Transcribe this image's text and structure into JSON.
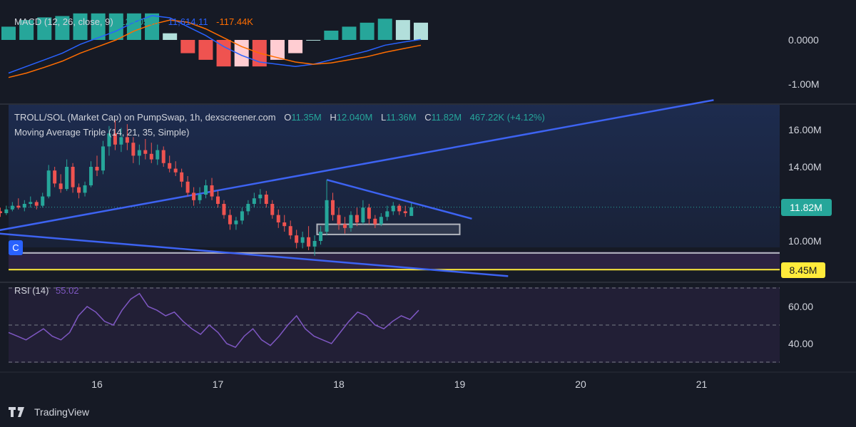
{
  "colors": {
    "up": "#26a69a",
    "down": "#ef5350",
    "macd": "#2962ff",
    "signal": "#ff6d00",
    "rsi": "#7e57c2",
    "trend": "#3d63f2",
    "accent": "#ffeb3b",
    "bg": "#161a25",
    "band": "#2c2342"
  },
  "macd_pane": {
    "title": "MACD (12, 26, close, 9)",
    "hist_value": "129.050K",
    "macd_value": "11,614.11",
    "signal_value": "-117.44K",
    "axis_ticks": [
      {
        "label": "0.0000",
        "value": 0
      },
      {
        "label": "-1.00M",
        "value": -1000000
      }
    ]
  },
  "price_pane": {
    "title": "TROLL/SOL (Market Cap) on PumpSwap, 1h, dexscreener.com",
    "o_label": "O",
    "o_value": "11.35M",
    "h_label": "H",
    "h_value": "12.040M",
    "l_label": "L",
    "l_value": "11.36M",
    "c_label": "C",
    "c_value": "11.82M",
    "change": "467.22K (+4.12%)",
    "ma_title": "Moving Average Triple (14, 21, 35, Simple)",
    "axis_ticks": [
      {
        "label": "16.00M",
        "value": 16
      },
      {
        "label": "14.00M",
        "value": 14
      },
      {
        "label": "10.00M",
        "value": 10
      }
    ],
    "current_price_label": "11.82M",
    "support_label": "8.45M",
    "marker_label": "C"
  },
  "rsi_pane": {
    "title": "RSI (14)",
    "value": "55.02",
    "axis_ticks": [
      {
        "label": "60.00",
        "value": 60
      },
      {
        "label": "40.00",
        "value": 40
      }
    ]
  },
  "time_axis": {
    "ticks": [
      {
        "label": "16",
        "day": 16
      },
      {
        "label": "17",
        "day": 17
      },
      {
        "label": "18",
        "day": 18
      },
      {
        "label": "19",
        "day": 19
      },
      {
        "label": "20",
        "day": 20
      },
      {
        "label": "21",
        "day": 21
      }
    ]
  },
  "branding": {
    "name": "TradingView"
  },
  "chart_data": {
    "type": "candlestick",
    "unit": "market cap (M)",
    "x_unit": "day of month (hourly candles)",
    "candles": [
      [
        15.05,
        12.6,
        12.9,
        12.2,
        12.3
      ],
      [
        15.1,
        12.3,
        12.5,
        11.9,
        12.0
      ],
      [
        15.15,
        12.0,
        12.1,
        11.4,
        11.6
      ],
      [
        15.2,
        11.6,
        11.8,
        11.3,
        11.5
      ],
      [
        15.25,
        11.5,
        11.9,
        11.4,
        11.7
      ],
      [
        15.3,
        11.7,
        12.1,
        11.6,
        11.9
      ],
      [
        15.35,
        11.9,
        12.3,
        11.7,
        11.8
      ],
      [
        15.4,
        11.8,
        12.2,
        11.6,
        12.0
      ],
      [
        15.45,
        12.0,
        12.4,
        11.8,
        12.1
      ],
      [
        15.5,
        12.1,
        12.2,
        11.7,
        11.9
      ],
      [
        15.55,
        11.9,
        12.6,
        11.8,
        12.4
      ],
      [
        15.6,
        12.4,
        14.1,
        12.3,
        13.8
      ],
      [
        15.65,
        13.8,
        14.0,
        12.9,
        13.1
      ],
      [
        15.7,
        13.1,
        13.6,
        12.6,
        12.8
      ],
      [
        15.75,
        12.8,
        14.4,
        12.7,
        14.0
      ],
      [
        15.8,
        14.0,
        14.2,
        12.6,
        12.9
      ],
      [
        15.85,
        12.9,
        13.1,
        12.3,
        12.6
      ],
      [
        15.9,
        12.6,
        13.2,
        12.4,
        13.0
      ],
      [
        15.95,
        13.0,
        14.3,
        12.9,
        14.0
      ],
      [
        16.0,
        14.0,
        14.6,
        13.5,
        13.8
      ],
      [
        16.05,
        13.8,
        15.4,
        13.6,
        15.1
      ],
      [
        16.1,
        15.1,
        16.2,
        14.6,
        15.8
      ],
      [
        16.15,
        15.8,
        16.5,
        14.9,
        15.2
      ],
      [
        16.2,
        15.2,
        16.1,
        14.8,
        15.6
      ],
      [
        16.25,
        15.6,
        16.3,
        14.9,
        15.3
      ],
      [
        16.3,
        15.3,
        15.6,
        14.2,
        14.6
      ],
      [
        16.35,
        14.6,
        15.2,
        14.1,
        14.9
      ],
      [
        16.4,
        14.9,
        15.5,
        14.4,
        14.7
      ],
      [
        16.45,
        14.7,
        15.3,
        14.2,
        14.4
      ],
      [
        16.5,
        14.4,
        15.2,
        14.1,
        14.9
      ],
      [
        16.55,
        14.9,
        15.1,
        14.0,
        14.2
      ],
      [
        16.6,
        14.2,
        14.6,
        13.7,
        13.9
      ],
      [
        16.65,
        13.9,
        14.3,
        13.5,
        13.7
      ],
      [
        16.7,
        13.7,
        13.9,
        12.9,
        13.2
      ],
      [
        16.75,
        13.2,
        13.5,
        12.4,
        12.6
      ],
      [
        16.8,
        12.6,
        12.9,
        11.9,
        12.2
      ],
      [
        16.85,
        12.2,
        12.9,
        12.0,
        12.5
      ],
      [
        16.9,
        12.5,
        13.3,
        12.3,
        13.0
      ],
      [
        16.95,
        13.0,
        13.4,
        12.2,
        12.4
      ],
      [
        17.0,
        12.4,
        12.7,
        11.8,
        12.0
      ],
      [
        17.05,
        12.0,
        12.2,
        11.2,
        11.4
      ],
      [
        17.1,
        11.4,
        11.7,
        10.6,
        10.9
      ],
      [
        17.15,
        10.9,
        11.3,
        10.6,
        11.1
      ],
      [
        17.2,
        11.1,
        11.8,
        10.9,
        11.6
      ],
      [
        17.25,
        11.6,
        12.2,
        11.4,
        12.0
      ],
      [
        17.3,
        12.0,
        12.6,
        11.8,
        12.3
      ],
      [
        17.35,
        12.3,
        12.8,
        12.0,
        12.5
      ],
      [
        17.4,
        12.5,
        12.7,
        11.8,
        12.0
      ],
      [
        17.45,
        12.0,
        12.2,
        11.2,
        11.4
      ],
      [
        17.5,
        11.4,
        11.7,
        10.7,
        11.0
      ],
      [
        17.55,
        11.0,
        11.4,
        10.5,
        10.8
      ],
      [
        17.6,
        10.8,
        11.1,
        10.1,
        10.3
      ],
      [
        17.65,
        10.3,
        10.6,
        9.6,
        9.9
      ],
      [
        17.7,
        9.9,
        10.5,
        9.6,
        10.2
      ],
      [
        17.75,
        10.2,
        10.8,
        9.5,
        9.7
      ],
      [
        17.8,
        9.7,
        10.3,
        9.2,
        10.0
      ],
      [
        17.85,
        10.0,
        10.8,
        9.8,
        10.5
      ],
      [
        17.9,
        10.5,
        13.3,
        10.3,
        12.2
      ],
      [
        17.95,
        12.2,
        12.6,
        11.1,
        11.4
      ],
      [
        18.0,
        11.4,
        11.8,
        10.6,
        10.9
      ],
      [
        18.05,
        10.9,
        11.3,
        10.4,
        10.7
      ],
      [
        18.1,
        10.7,
        11.6,
        10.5,
        11.4
      ],
      [
        18.15,
        11.4,
        11.8,
        10.8,
        11.0
      ],
      [
        18.2,
        11.0,
        12.2,
        10.9,
        11.8
      ],
      [
        18.25,
        11.8,
        12.0,
        10.9,
        11.2
      ],
      [
        18.3,
        11.2,
        11.4,
        10.7,
        10.9
      ],
      [
        18.35,
        10.9,
        11.5,
        10.8,
        11.3
      ],
      [
        18.4,
        11.3,
        11.9,
        11.1,
        11.6
      ],
      [
        18.45,
        11.6,
        12.1,
        11.4,
        11.9
      ],
      [
        18.5,
        11.9,
        12.0,
        11.4,
        11.6
      ],
      [
        18.55,
        11.6,
        11.9,
        11.3,
        11.5
      ],
      [
        18.6,
        11.35,
        12.04,
        11.36,
        11.82
      ]
    ],
    "macd": [
      -0.75,
      -0.6,
      -0.45,
      -0.3,
      -0.1,
      0.05,
      0.2,
      0.4,
      0.55,
      0.5,
      0.3,
      0.1,
      -0.15,
      -0.35,
      -0.5,
      -0.55,
      -0.6,
      -0.55,
      -0.45,
      -0.35,
      -0.25,
      -0.12,
      -0.05,
      0.01
    ],
    "signal": [
      -0.85,
      -0.75,
      -0.62,
      -0.48,
      -0.3,
      -0.15,
      0.0,
      0.2,
      0.35,
      0.45,
      0.4,
      0.25,
      0.05,
      -0.15,
      -0.3,
      -0.4,
      -0.5,
      -0.55,
      -0.52,
      -0.45,
      -0.38,
      -0.28,
      -0.2,
      -0.12
    ],
    "rsi": [
      46,
      44,
      42,
      45,
      48,
      44,
      42,
      46,
      55,
      60,
      57,
      52,
      50,
      58,
      64,
      67,
      60,
      58,
      55,
      57,
      52,
      48,
      45,
      50,
      46,
      40,
      38,
      44,
      48,
      42,
      39,
      44,
      50,
      55,
      48,
      44,
      42,
      40,
      46,
      52,
      57,
      55,
      50,
      48,
      52,
      55,
      53,
      58
    ],
    "trendlines": [
      {
        "name": "rising",
        "from": [
          15.0,
          10.35
        ],
        "to": [
          21.1,
          17.6
        ]
      },
      {
        "name": "falling",
        "from": [
          15.0,
          10.5
        ],
        "to": [
          19.4,
          8.1
        ]
      },
      {
        "name": "resistance",
        "from": [
          17.9,
          13.3
        ],
        "to": [
          19.1,
          11.2
        ]
      }
    ],
    "levels": {
      "current": 11.82,
      "support": 8.45,
      "box_low": 10.35,
      "box_high": 10.9,
      "band_low": 8.35,
      "band_high": 9.35
    },
    "y_range": [
      8.0,
      17.7
    ],
    "rsi_range": [
      30,
      70
    ],
    "macd_range": [
      -1.5,
      0.6
    ]
  }
}
